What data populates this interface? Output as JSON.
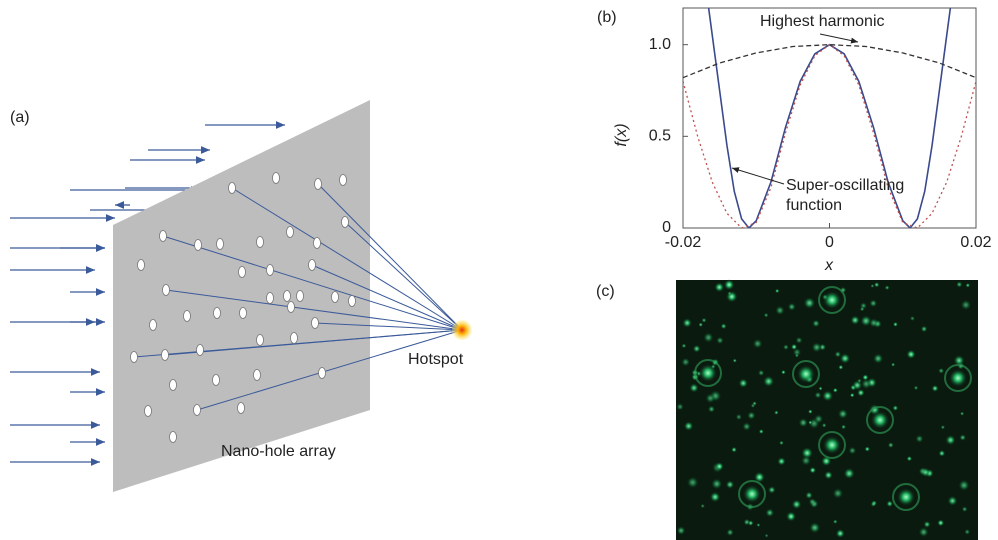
{
  "panel_a": {
    "label": "(a)",
    "hotspot": "Hotspot",
    "array": "Nano-hole array"
  },
  "chart_data": {
    "type": "line",
    "label": "(b)",
    "xlabel": "x",
    "ylabel": "f(x)",
    "xlim": [
      -0.02,
      0.02
    ],
    "xticks": [
      -0.02,
      0,
      0.02
    ],
    "ylim": [
      0,
      1.2
    ],
    "yticks": [
      0,
      0.5,
      {
        "value": 1,
        "label": "1.0"
      }
    ],
    "annotations": [
      "Highest harmonic",
      "Super-oscillating function"
    ],
    "series": [
      {
        "color": "#3a4a8c",
        "style": "solid",
        "x": [
          -0.0165,
          -0.015,
          -0.014,
          -0.013,
          -0.012,
          -0.011,
          -0.01,
          -0.008,
          -0.006,
          -0.004,
          -0.002,
          0,
          0.002,
          0.004,
          0.006,
          0.008,
          0.01,
          0.011,
          0.012,
          0.013,
          0.014,
          0.015,
          0.0165
        ],
        "values": [
          1.2,
          0.75,
          0.45,
          0.2,
          0.05,
          0.0,
          0.04,
          0.25,
          0.55,
          0.8,
          0.95,
          1.0,
          0.95,
          0.8,
          0.55,
          0.25,
          0.04,
          0.0,
          0.05,
          0.2,
          0.45,
          0.75,
          1.2
        ]
      },
      {
        "color": "#c0504d",
        "style": "dotted",
        "x": [
          -0.02,
          -0.018,
          -0.016,
          -0.014,
          -0.012,
          -0.01,
          -0.008,
          -0.006,
          -0.004,
          -0.002,
          0,
          0.002,
          0.004,
          0.006,
          0.008,
          0.01,
          0.012,
          0.014,
          0.016,
          0.018,
          0.02
        ],
        "values": [
          0.8,
          0.5,
          0.25,
          0.08,
          0.0,
          0.03,
          0.22,
          0.52,
          0.78,
          0.94,
          1.0,
          0.94,
          0.78,
          0.52,
          0.22,
          0.03,
          0.0,
          0.08,
          0.25,
          0.5,
          0.8
        ]
      },
      {
        "color": "#333333",
        "style": "dashed",
        "x": [
          -0.02,
          -0.015,
          -0.01,
          -0.005,
          0,
          0.005,
          0.01,
          0.015,
          0.02
        ],
        "values": [
          0.82,
          0.9,
          0.955,
          0.99,
          1.0,
          0.99,
          0.955,
          0.9,
          0.82
        ]
      }
    ]
  },
  "panel_c": {
    "label": "(c)"
  }
}
